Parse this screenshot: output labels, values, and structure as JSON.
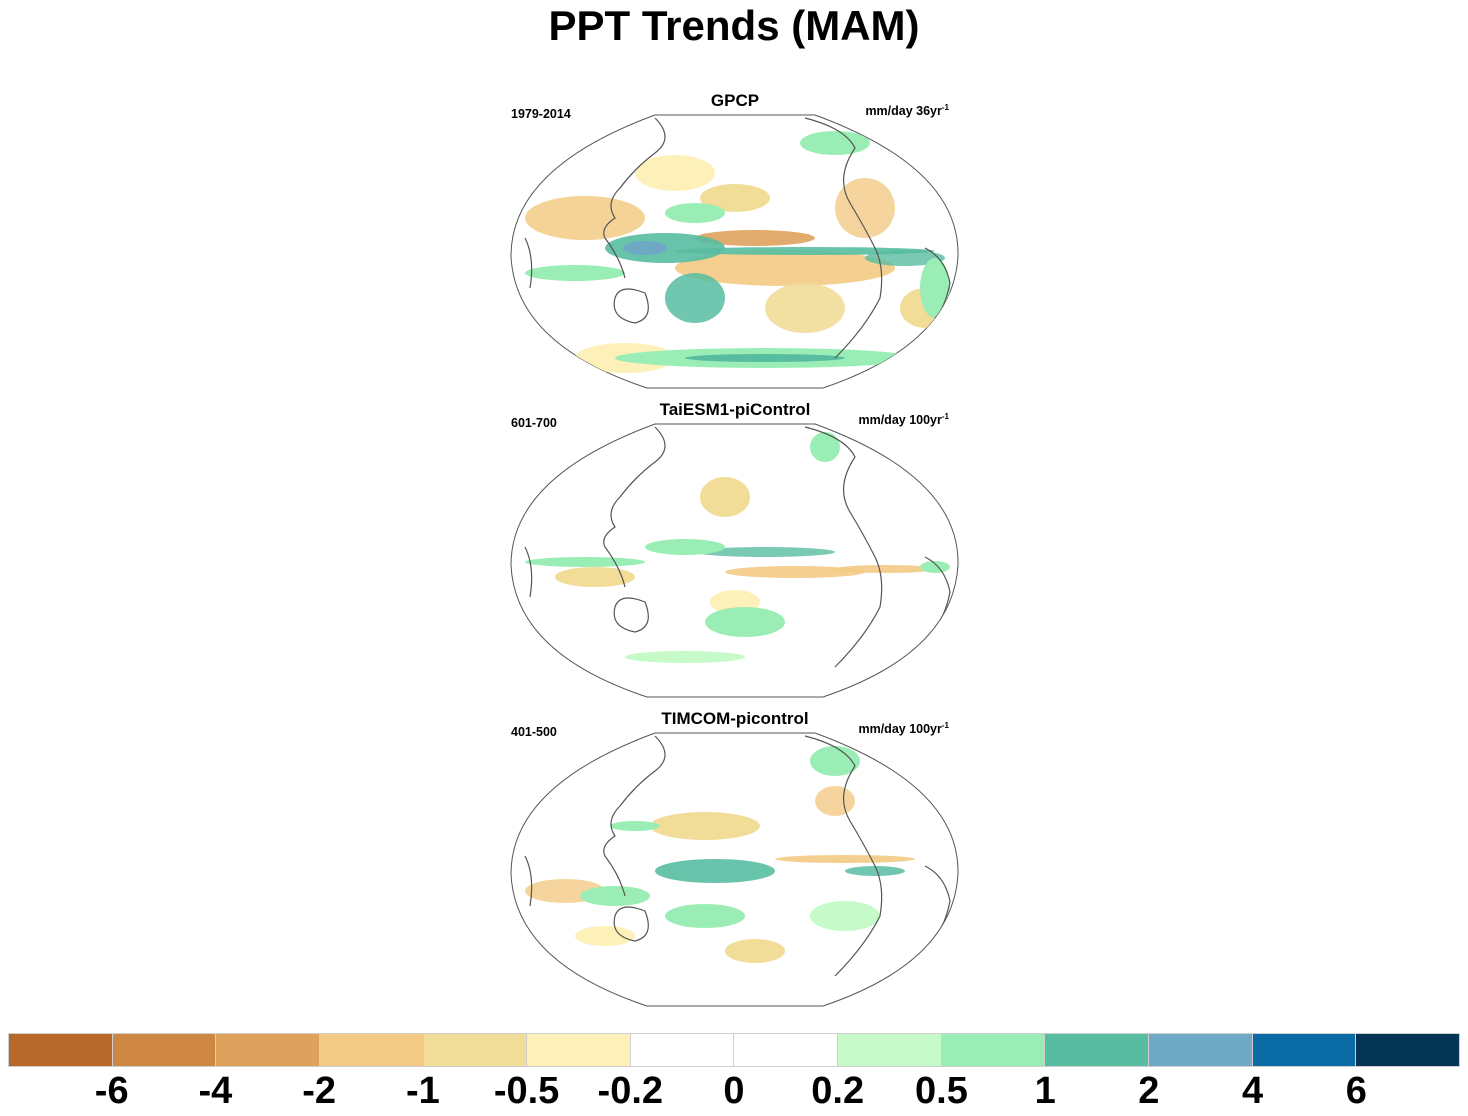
{
  "title": "PPT Trends (MAM)",
  "panels": [
    {
      "title": "GPCP",
      "period": "1979-2014",
      "units": "mm/day 36yr",
      "units_sup": "-1"
    },
    {
      "title": "TaiESM1-piControl",
      "period": "601-700",
      "units": "mm/day 100yr",
      "units_sup": "-1"
    },
    {
      "title": "TIMCOM-picontrol",
      "period": "401-500",
      "units": "mm/day 100yr",
      "units_sup": "-1"
    }
  ],
  "colorbar": {
    "colors": [
      "#b5682a",
      "#cd8742",
      "#dea25e",
      "#f3ca84",
      "#f1dd98",
      "#fdf1b9",
      "#ffffff",
      "#ffffff",
      "#c6fac8",
      "#9aeeb5",
      "#57bca0",
      "#6fa9c6",
      "#0a6aa6",
      "#053555"
    ],
    "labels": [
      "-6",
      "-4",
      "-2",
      "-1",
      "-0.5",
      "-0.2",
      "0",
      "0.2",
      "0.5",
      "1",
      "2",
      "4",
      "6"
    ]
  },
  "chart_data": {
    "type": "heatmap",
    "title": "PPT Trends (MAM)",
    "projection": "Winkel tripel, Pacific-centered global maps",
    "panels": [
      "GPCP",
      "TaiESM1-piControl",
      "TIMCOM-picontrol"
    ],
    "color_levels": [
      -6,
      -4,
      -2,
      -1,
      -0.5,
      -0.2,
      0,
      0.2,
      0.5,
      1,
      2,
      4,
      6
    ]
  }
}
